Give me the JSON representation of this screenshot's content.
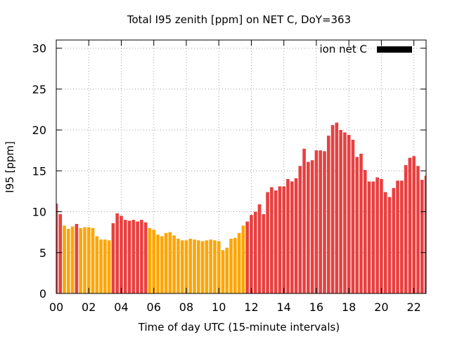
{
  "chart_data": {
    "type": "bar",
    "title": "Total I95 zenith [ppm] on NET C, DoY=363",
    "xlabel": "Time of day UTC (15-minute intervals)",
    "ylabel": "I95 [ppm]",
    "ylim": [
      0,
      31
    ],
    "xlim": [
      0,
      22.75
    ],
    "yticks": [
      0,
      5,
      10,
      15,
      20,
      25,
      30
    ],
    "ytick_labels": [
      "0",
      "5",
      "10",
      "15",
      "20",
      "25",
      "30"
    ],
    "xticks": [
      0,
      2,
      4,
      6,
      8,
      10,
      12,
      14,
      16,
      18,
      20,
      22
    ],
    "xtick_labels": [
      "00",
      "02",
      "04",
      "06",
      "08",
      "10",
      "12",
      "14",
      "16",
      "18",
      "20",
      "22"
    ],
    "grid": true,
    "legend": {
      "label": "ion net C",
      "position": "top-right",
      "color": "#000000"
    },
    "interval_hours": 0.25,
    "bar_width_fraction": 0.8,
    "colors": {
      "low": "#FFA500",
      "high": "#E84040"
    },
    "color_threshold": 8.5,
    "values": [
      11.0,
      9.7,
      8.3,
      7.9,
      8.2,
      8.5,
      8.0,
      8.1,
      8.1,
      8.0,
      7.0,
      6.6,
      6.6,
      6.5,
      8.6,
      9.8,
      9.5,
      9.0,
      8.9,
      9.0,
      8.8,
      9.0,
      8.7,
      8.0,
      7.8,
      7.2,
      7.0,
      7.4,
      7.5,
      7.1,
      6.7,
      6.5,
      6.5,
      6.7,
      6.6,
      6.5,
      6.4,
      6.5,
      6.6,
      6.5,
      6.4,
      5.3,
      5.6,
      6.7,
      6.8,
      7.4,
      8.3,
      8.8,
      9.6,
      10.0,
      10.9,
      9.7,
      12.4,
      13.0,
      12.6,
      13.1,
      13.1,
      14.0,
      13.7,
      14.1,
      15.6,
      17.7,
      16.1,
      16.3,
      17.5,
      17.5,
      17.4,
      19.3,
      20.6,
      20.9,
      20.0,
      19.7,
      19.4,
      18.8,
      16.7,
      17.1,
      15.1,
      13.7,
      13.7,
      14.2,
      14.0,
      12.4,
      11.8,
      12.9,
      13.8,
      13.8,
      15.7,
      16.6,
      16.8,
      15.6,
      13.9,
      14.4
    ]
  }
}
